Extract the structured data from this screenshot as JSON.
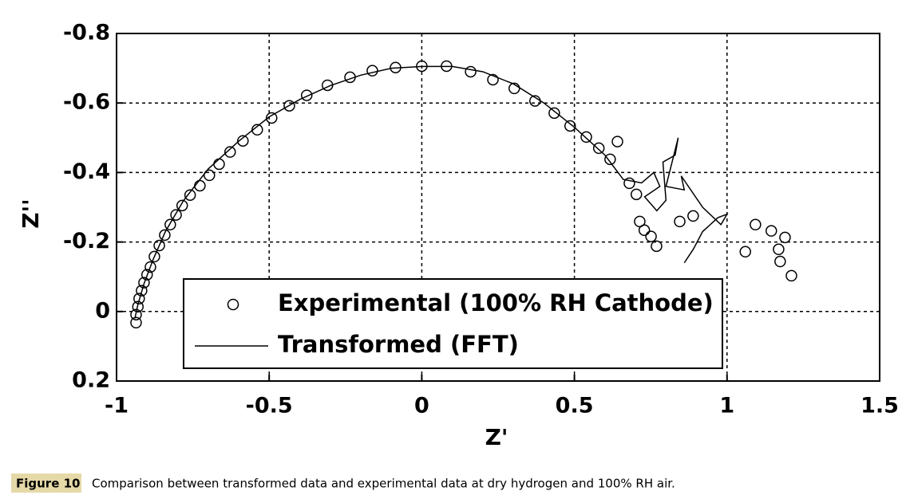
{
  "chart_data": {
    "type": "scatter",
    "xlabel": "Z'",
    "ylabel": "Z''",
    "xlim": [
      -1,
      1.5
    ],
    "xticks": [
      -1,
      -0.5,
      0,
      0.5,
      1,
      1.5
    ],
    "ylim": [
      0.2,
      -0.8
    ],
    "yticks": [
      -0.8,
      -0.6,
      -0.4,
      -0.2,
      0,
      0.2
    ],
    "grid": true,
    "legend": "lower center",
    "series": [
      {
        "name": "Experimental (100% RH Cathode)",
        "color": "#000000",
        "style": "marker",
        "x": [
          -0.936,
          -0.936,
          -0.93,
          -0.926,
          -0.918,
          -0.91,
          -0.9,
          -0.889,
          -0.876,
          -0.86,
          -0.842,
          -0.824,
          -0.805,
          -0.785,
          -0.759,
          -0.727,
          -0.696,
          -0.664,
          -0.628,
          -0.586,
          -0.539,
          -0.492,
          -0.434,
          -0.377,
          -0.309,
          -0.235,
          -0.162,
          -0.086,
          0,
          0.081,
          0.16,
          0.233,
          0.303,
          0.371,
          0.434,
          0.486,
          0.539,
          0.58,
          0.617,
          0.641,
          0.68,
          0.703,
          0.714,
          0.729,
          0.751,
          0.769,
          0.845,
          0.889,
          1.06,
          1.093,
          1.145,
          1.169,
          1.174,
          1.19,
          1.211
        ],
        "values": [
          0.032,
          0.009,
          -0.014,
          -0.037,
          -0.06,
          -0.083,
          -0.106,
          -0.128,
          -0.158,
          -0.19,
          -0.22,
          -0.25,
          -0.278,
          -0.305,
          -0.335,
          -0.362,
          -0.392,
          -0.424,
          -0.459,
          -0.491,
          -0.523,
          -0.557,
          -0.592,
          -0.622,
          -0.651,
          -0.674,
          -0.693,
          -0.702,
          -0.706,
          -0.706,
          -0.69,
          -0.667,
          -0.642,
          -0.606,
          -0.571,
          -0.534,
          -0.502,
          -0.47,
          -0.438,
          -0.489,
          -0.369,
          -0.337,
          -0.259,
          -0.234,
          -0.216,
          -0.188,
          -0.259,
          -0.275,
          -0.172,
          -0.25,
          -0.232,
          -0.179,
          -0.144,
          -0.213,
          -0.103
        ]
      },
      {
        "name": "Transformed (FFT)",
        "color": "#000000",
        "style": "line",
        "x": [
          -0.94,
          -0.93,
          -0.91,
          -0.88,
          -0.84,
          -0.78,
          -0.7,
          -0.6,
          -0.5,
          -0.4,
          -0.3,
          -0.2,
          -0.1,
          0,
          0.1,
          0.2,
          0.3,
          0.4,
          0.5,
          0.6,
          0.66,
          0.72,
          0.76,
          0.78,
          0.73,
          0.77,
          0.8,
          0.79,
          0.83,
          0.84,
          0.8,
          0.86,
          0.85,
          0.92,
          0.98,
          1.0,
          0.97,
          0.92,
          0.89,
          0.86
        ],
        "values": [
          0.02,
          -0.02,
          -0.08,
          -0.15,
          -0.23,
          -0.32,
          -0.41,
          -0.49,
          -0.56,
          -0.61,
          -0.65,
          -0.68,
          -0.7,
          -0.705,
          -0.705,
          -0.69,
          -0.655,
          -0.6,
          -0.53,
          -0.45,
          -0.38,
          -0.37,
          -0.4,
          -0.36,
          -0.33,
          -0.29,
          -0.32,
          -0.43,
          -0.45,
          -0.5,
          -0.36,
          -0.35,
          -0.39,
          -0.3,
          -0.25,
          -0.28,
          -0.27,
          -0.23,
          -0.18,
          -0.14
        ]
      }
    ]
  },
  "figure": {
    "label": "Figure 10",
    "caption": "Comparison between transformed data and experimental data at dry hydrogen and 100% RH air."
  }
}
